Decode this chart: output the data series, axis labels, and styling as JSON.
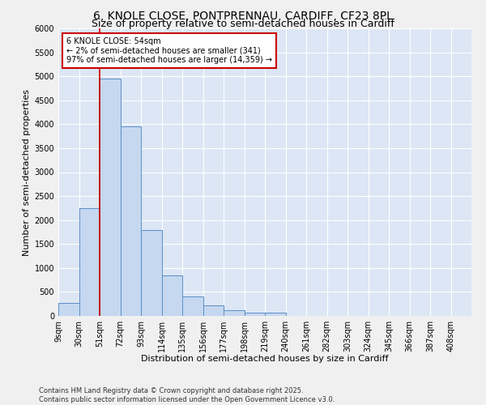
{
  "title_line1": "6, KNOLE CLOSE, PONTPRENNAU, CARDIFF, CF23 8PL",
  "title_line2": "Size of property relative to semi-detached houses in Cardiff",
  "xlabel": "Distribution of semi-detached houses by size in Cardiff",
  "ylabel": "Number of semi-detached properties",
  "bar_color": "#c5d8f0",
  "bar_edge_color": "#5b8ec4",
  "bg_color": "#dce6f5",
  "grid_color": "#ffffff",
  "annotation_box_color": "#cc0000",
  "annotation_text": "6 KNOLE CLOSE: 54sqm\n← 2% of semi-detached houses are smaller (341)\n97% of semi-detached houses are larger (14,359) →",
  "vline_color": "#cc0000",
  "vline_x": 51,
  "bin_edges": [
    9,
    30,
    51,
    72,
    93,
    114,
    135,
    156,
    177,
    198,
    219,
    240,
    261,
    282,
    303,
    324,
    345,
    366,
    387,
    408,
    429
  ],
  "bar_heights": [
    275,
    2250,
    4950,
    3950,
    1800,
    850,
    400,
    225,
    125,
    75,
    75,
    0,
    0,
    0,
    0,
    0,
    0,
    0,
    0,
    0
  ],
  "ylim": [
    0,
    6000
  ],
  "yticks": [
    0,
    500,
    1000,
    1500,
    2000,
    2500,
    3000,
    3500,
    4000,
    4500,
    5000,
    5500,
    6000
  ],
  "fig_bg_color": "#f0f0f0",
  "footnote": "Contains HM Land Registry data © Crown copyright and database right 2025.\nContains public sector information licensed under the Open Government Licence v3.0.",
  "title_fontsize": 10,
  "subtitle_fontsize": 9,
  "annotation_fontsize": 7,
  "axis_label_fontsize": 8,
  "tick_fontsize": 7,
  "footnote_fontsize": 6
}
